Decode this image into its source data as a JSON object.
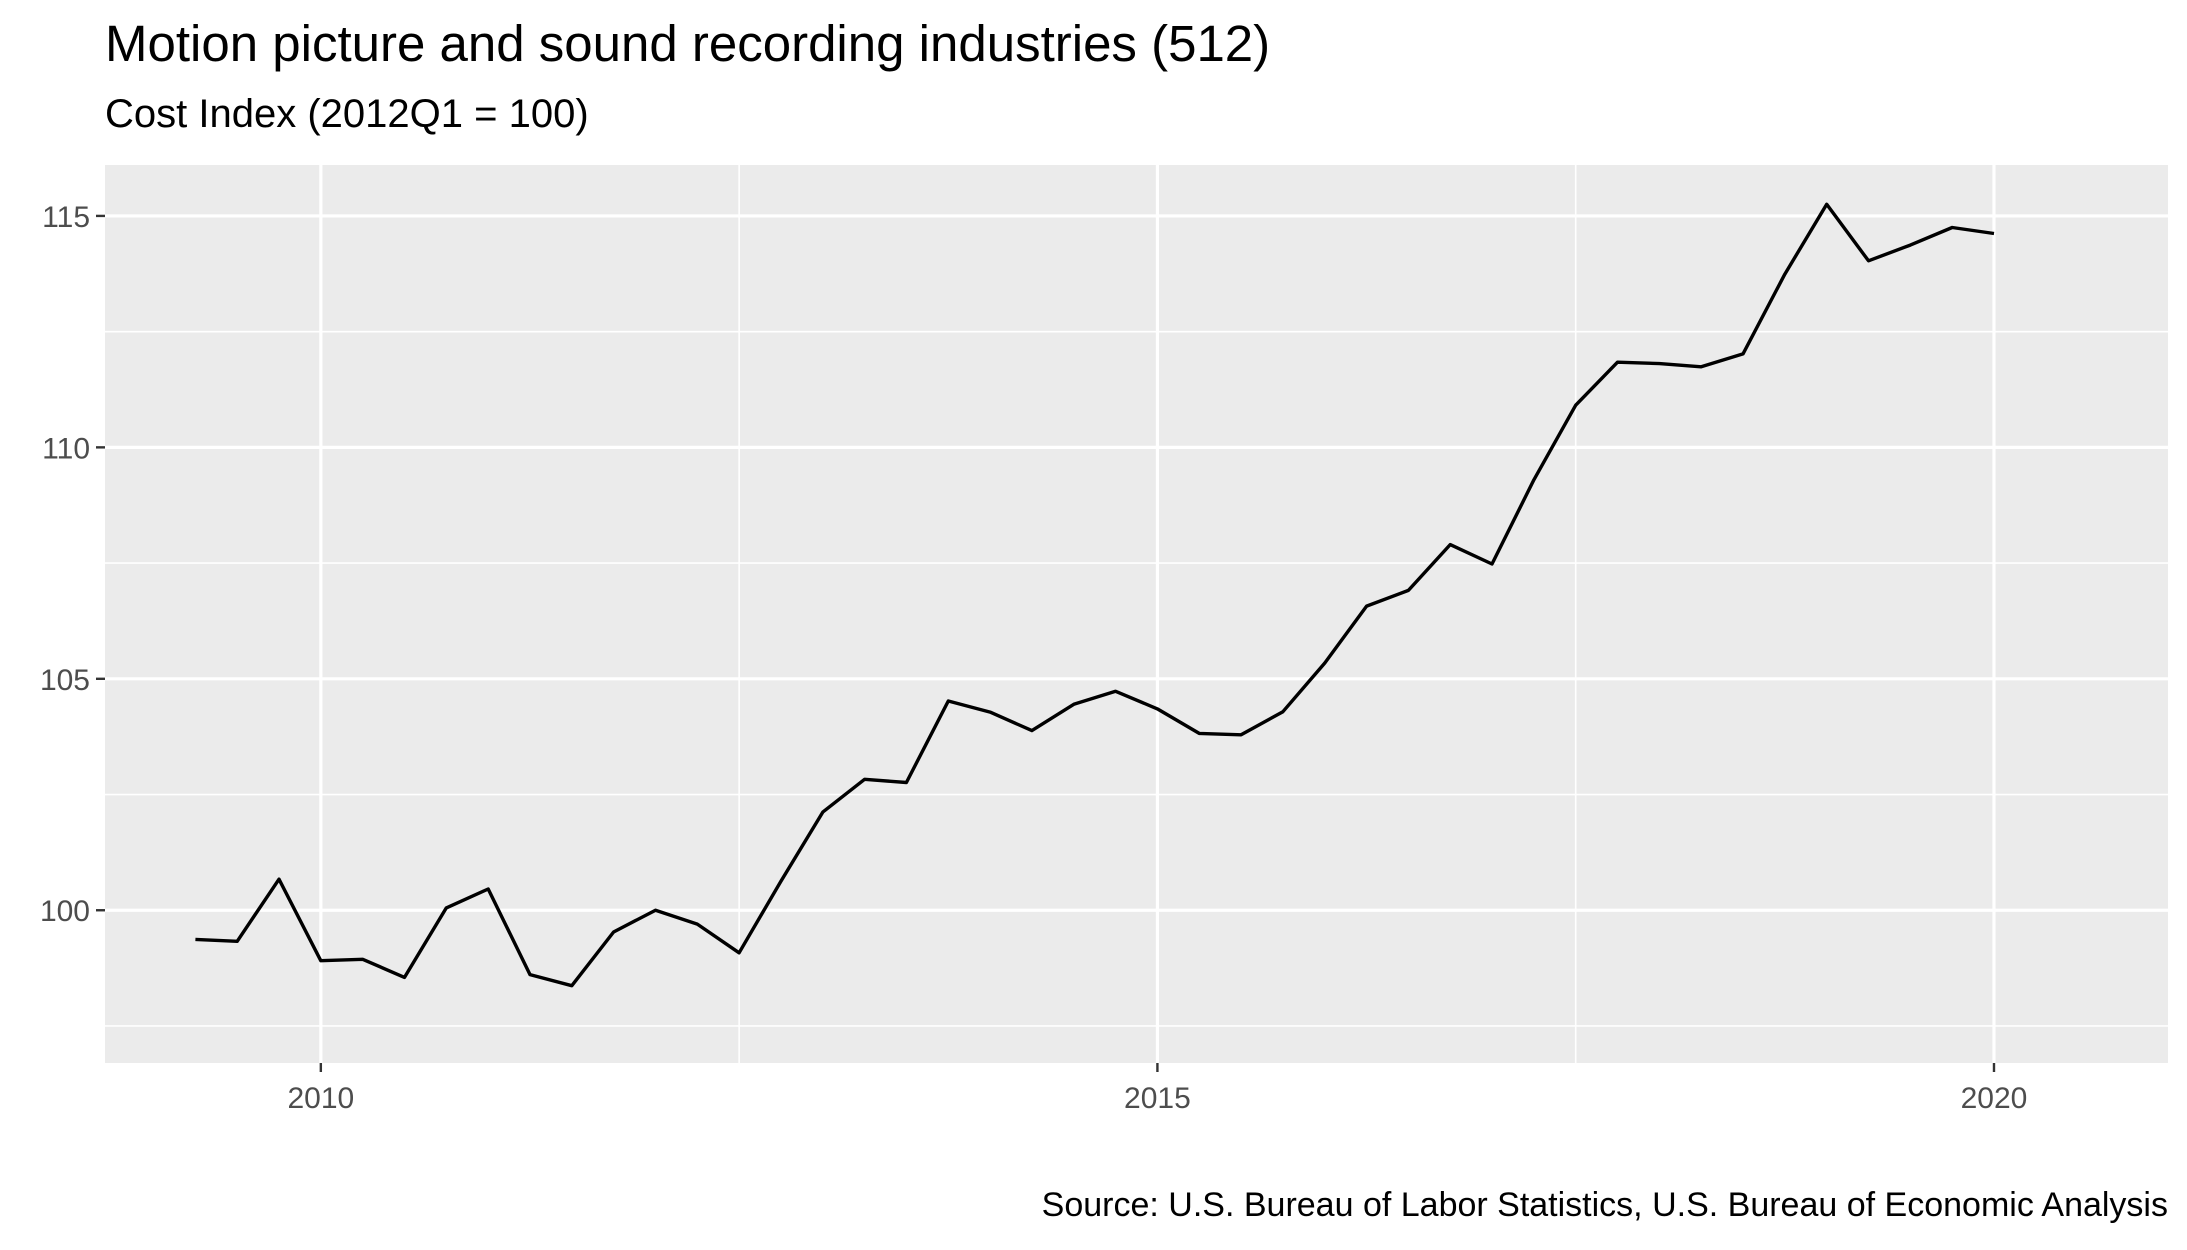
{
  "chart_data": {
    "type": "line",
    "title": "Motion picture and sound recording industries (512)",
    "subtitle": "Cost Index (2012Q1 = 100)",
    "caption": "Source: U.S. Bureau of Labor Statistics, U.S. Bureau of Economic Analysis",
    "xlabel": "",
    "ylabel": "",
    "x_range": [
      2008.71,
      2021.04
    ],
    "y_range": [
      96.7,
      116.1
    ],
    "x_ticks": [
      2010,
      2015,
      2020
    ],
    "y_ticks": [
      100,
      105,
      110,
      115
    ],
    "grid": true,
    "legend": "none",
    "line_color": "#000000",
    "panel_color": "#ebebeb",
    "series": [
      {
        "x": [
          "2009Q2",
          "2009Q3",
          "2009Q4",
          "2010Q1",
          "2010Q2",
          "2010Q3",
          "2010Q4",
          "2011Q1",
          "2011Q2",
          "2011Q3",
          "2011Q4",
          "2012Q1",
          "2012Q2",
          "2012Q3",
          "2012Q4",
          "2013Q1",
          "2013Q2",
          "2013Q3",
          "2013Q4",
          "2014Q1",
          "2014Q2",
          "2014Q3",
          "2014Q4",
          "2015Q1",
          "2015Q2",
          "2015Q3",
          "2015Q4",
          "2016Q1",
          "2016Q2",
          "2016Q3",
          "2016Q4",
          "2017Q1",
          "2017Q2",
          "2017Q3",
          "2017Q4",
          "2018Q1",
          "2018Q2",
          "2018Q3",
          "2018Q4",
          "2019Q1",
          "2019Q2",
          "2019Q3",
          "2019Q4",
          "2020Q1"
        ],
        "values": [
          99.37,
          99.33,
          100.67,
          98.91,
          98.94,
          98.55,
          100.05,
          100.46,
          98.61,
          98.37,
          99.53,
          100.0,
          99.7,
          99.08,
          100.63,
          102.12,
          102.83,
          102.76,
          104.52,
          104.28,
          103.88,
          104.45,
          104.73,
          104.35,
          103.82,
          103.79,
          104.29,
          105.34,
          106.57,
          106.91,
          107.9,
          107.48,
          109.3,
          110.91,
          111.84,
          111.81,
          111.74,
          112.02,
          113.74,
          115.25,
          114.03,
          114.37,
          114.75,
          114.62
        ]
      }
    ]
  }
}
